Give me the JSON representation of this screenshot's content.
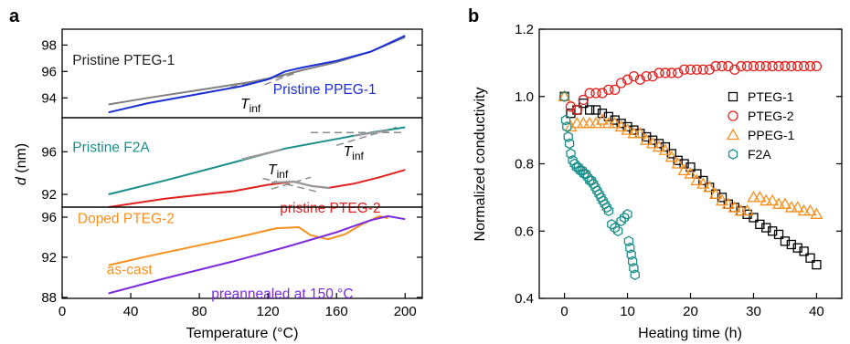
{
  "chart_data": [
    {
      "panel": "a",
      "type": "line",
      "xlabel": "Temperature (°C)",
      "ylabel_main": "d",
      "ylabel_unit": " (nm)",
      "xlim": [
        0,
        210
      ],
      "xticks": [
        "0",
        "40",
        "80",
        "120",
        "160",
        "200"
      ],
      "sub_panels": [
        {
          "ylim": [
            92.5,
            99.2
          ],
          "yticks": [
            {
              "v": 98,
              "label": "98"
            },
            {
              "v": 96,
              "label": "96"
            },
            {
              "v": 94,
              "label": "94"
            }
          ],
          "series": [
            {
              "color": "#808080",
              "points": [
                [
                  27,
                  93.5
                ],
                [
                  50,
                  94.0
                ],
                [
                  80,
                  94.6
                ],
                [
                  110,
                  95.2
                ],
                [
                  125,
                  95.6
                ],
                [
                  140,
                  96.1
                ],
                [
                  160,
                  96.7
                ],
                [
                  180,
                  97.5
                ],
                [
                  200,
                  98.6
                ]
              ]
            },
            {
              "color": "#1a2ed6",
              "points": [
                [
                  27,
                  92.9
                ],
                [
                  50,
                  93.6
                ],
                [
                  80,
                  94.3
                ],
                [
                  105,
                  94.9
                ],
                [
                  120,
                  95.4
                ],
                [
                  130,
                  96.0
                ],
                [
                  140,
                  96.3
                ],
                [
                  160,
                  96.8
                ],
                [
                  180,
                  97.5
                ],
                [
                  200,
                  98.7
                ]
              ]
            }
          ],
          "guides": [
            {
              "points": [
                [
                  98,
                  94.8
                ],
                [
                  135,
                  95.8
                ]
              ]
            },
            {
              "points": [
                [
                  118,
                  95.0
                ],
                [
                  142,
                  96.2
                ]
              ]
            }
          ],
          "labels": [
            {
              "text": "Pristine PTEG-1",
              "x": 6,
              "y": 96.5,
              "color": "#222222"
            },
            {
              "text": "Pristine PPEG-1",
              "x": 123,
              "y": 94.3,
              "color": "#1a2ed6"
            }
          ],
          "tinf": [
            {
              "x": 104,
              "y": 93.2
            }
          ]
        },
        {
          "ylim": [
            90.8,
            99.2
          ],
          "yticks": [
            {
              "v": 96,
              "label": "96"
            },
            {
              "v": 92,
              "label": "92"
            }
          ],
          "series": [
            {
              "color": "#1a8f8a",
              "points": [
                [
                  27,
                  92.0
                ],
                [
                  60,
                  93.3
                ],
                [
                  100,
                  95.0
                ],
                [
                  130,
                  96.3
                ],
                [
                  160,
                  97.2
                ],
                [
                  180,
                  97.8
                ],
                [
                  200,
                  98.3
                ]
              ]
            },
            {
              "color": "#e0211e",
              "points": [
                [
                  27,
                  90.8
                ],
                [
                  60,
                  91.6
                ],
                [
                  100,
                  92.3
                ],
                [
                  120,
                  92.9
                ],
                [
                  135,
                  93.2
                ],
                [
                  145,
                  92.8
                ],
                [
                  155,
                  92.6
                ],
                [
                  170,
                  93.0
                ],
                [
                  185,
                  93.6
                ],
                [
                  200,
                  94.3
                ]
              ]
            }
          ],
          "overlays": [
            {
              "color": "#999999",
              "points": [
                [
                  122,
                  93.1
                ],
                [
                  135,
                  93.2
                ],
                [
                  145,
                  92.8
                ],
                [
                  156,
                  92.6
                ]
              ]
            },
            {
              "color": "#999999",
              "points": [
                [
                  105,
                  95.3
                ],
                [
                  128,
                  96.2
                ]
              ]
            },
            {
              "color": "#999999",
              "points": [
                [
                  170,
                  97.5
                ],
                [
                  190,
                  98.0
                ]
              ]
            }
          ],
          "guides": [
            {
              "points": [
                [
                  145,
                  97.8
                ],
                [
                  200,
                  97.8
                ]
              ]
            },
            {
              "points": [
                [
                  160,
                  96.6
                ],
                [
                  195,
                  98.3
                ]
              ]
            },
            {
              "points": [
                [
                  122,
                  92.5
                ],
                [
                  145,
                  93.6
                ]
              ]
            },
            {
              "points": [
                [
                  117,
                  93.5
                ],
                [
                  150,
                  92.2
                ]
              ]
            }
          ],
          "labels": [
            {
              "text": "Pristine F2A",
              "x": 6,
              "y": 96.0,
              "color": "#1a8f8a"
            },
            {
              "text": "pristine PTEG-2",
              "x": 127,
              "y": 90.3,
              "color": "#e0211e"
            }
          ],
          "tinf": [
            {
              "x": 164,
              "y": 95.6
            },
            {
              "x": 120,
              "y": 93.9
            }
          ]
        },
        {
          "ylim": [
            87.9,
            97.0
          ],
          "yticks": [
            {
              "v": 96,
              "label": "96"
            },
            {
              "v": 92,
              "label": "92"
            },
            {
              "v": 88,
              "label": "88"
            }
          ],
          "series": [
            {
              "color": "#f7901e",
              "points": [
                [
                  27,
                  91.2
                ],
                [
                  50,
                  92.1
                ],
                [
                  80,
                  93.2
                ],
                [
                  105,
                  94.1
                ],
                [
                  125,
                  94.9
                ],
                [
                  138,
                  95.0
                ],
                [
                  145,
                  94.2
                ],
                [
                  155,
                  93.8
                ],
                [
                  165,
                  94.3
                ],
                [
                  175,
                  95.3
                ],
                [
                  185,
                  96.1
                ],
                [
                  190,
                  95.9
                ]
              ]
            },
            {
              "color": "#7b2ae0",
              "points": [
                [
                  27,
                  88.4
                ],
                [
                  60,
                  89.9
                ],
                [
                  100,
                  91.6
                ],
                [
                  130,
                  93.0
                ],
                [
                  160,
                  94.5
                ],
                [
                  180,
                  95.7
                ],
                [
                  190,
                  96.1
                ],
                [
                  200,
                  95.8
                ]
              ]
            }
          ],
          "labels": [
            {
              "text": "Doped PTEG-2",
              "x": 9,
              "y": 95.4,
              "color": "#f7901e"
            },
            {
              "text": "as-cast",
              "x": 26,
              "y": 90.3,
              "color": "#f7901e"
            },
            {
              "text": "preannealed at 150 °C",
              "x": 87,
              "y": 87.9,
              "color": "#7b2ae0"
            }
          ]
        }
      ],
      "tinf_label": {
        "main": "T",
        "sub": "inf"
      }
    },
    {
      "panel": "b",
      "type": "scatter",
      "xlabel": "Heating time (h)",
      "ylabel": "Normalized conductivity",
      "xlim": [
        -4,
        44
      ],
      "ylim": [
        0.4,
        1.2
      ],
      "xticks": [
        0,
        10,
        20,
        30,
        40
      ],
      "yticks": [
        {
          "v": 0.4,
          "label": "0.4"
        },
        {
          "v": 0.6,
          "label": "0.6"
        },
        {
          "v": 0.8,
          "label": "0.8"
        },
        {
          "v": 1.0,
          "label": "1.0"
        },
        {
          "v": 1.2,
          "label": "1.2"
        }
      ],
      "legend_position": "right",
      "series": [
        {
          "name": "PTEG-1",
          "marker": "square",
          "color": "#000000",
          "x": [
            0,
            1,
            2,
            3,
            4,
            5,
            6,
            7,
            8,
            9,
            10,
            11,
            12,
            13,
            14,
            15,
            16,
            17,
            18,
            19,
            20,
            21,
            22,
            23,
            24,
            25,
            26,
            27,
            28,
            29,
            30,
            31,
            32,
            33,
            34,
            35,
            36,
            37,
            38,
            39,
            40
          ],
          "y": [
            1.0,
            0.95,
            0.96,
            0.98,
            0.96,
            0.96,
            0.95,
            0.94,
            0.93,
            0.92,
            0.91,
            0.9,
            0.89,
            0.88,
            0.87,
            0.86,
            0.85,
            0.83,
            0.81,
            0.8,
            0.79,
            0.77,
            0.75,
            0.73,
            0.71,
            0.7,
            0.68,
            0.67,
            0.66,
            0.65,
            0.64,
            0.62,
            0.61,
            0.6,
            0.59,
            0.57,
            0.56,
            0.55,
            0.54,
            0.52,
            0.5
          ]
        },
        {
          "name": "PTEG-2",
          "marker": "circle",
          "color": "#e0211e",
          "x": [
            0,
            1,
            2,
            3,
            4,
            5,
            6,
            7,
            8,
            9,
            10,
            11,
            12,
            13,
            14,
            15,
            16,
            17,
            18,
            19,
            20,
            21,
            22,
            23,
            24,
            25,
            26,
            27,
            28,
            29,
            30,
            31,
            32,
            33,
            34,
            35,
            36,
            37,
            38,
            39,
            40
          ],
          "y": [
            1.0,
            0.97,
            0.96,
            0.99,
            1.01,
            1.01,
            1.01,
            1.02,
            1.02,
            1.04,
            1.05,
            1.06,
            1.05,
            1.06,
            1.06,
            1.07,
            1.07,
            1.07,
            1.07,
            1.08,
            1.08,
            1.08,
            1.08,
            1.08,
            1.09,
            1.09,
            1.09,
            1.08,
            1.09,
            1.09,
            1.09,
            1.09,
            1.09,
            1.09,
            1.09,
            1.09,
            1.09,
            1.09,
            1.09,
            1.09,
            1.09
          ]
        },
        {
          "name": "PPEG-1",
          "marker": "triangle",
          "color": "#f7901e",
          "x": [
            0,
            1,
            2,
            3,
            4,
            5,
            6,
            7,
            8,
            9,
            10,
            11,
            12,
            13,
            14,
            15,
            16,
            17,
            18,
            19,
            20,
            21,
            22,
            23,
            24,
            25,
            26,
            27,
            28,
            29,
            30,
            31,
            32,
            33,
            34,
            35,
            36,
            37,
            38,
            39,
            40
          ],
          "y": [
            1.0,
            0.91,
            0.92,
            0.92,
            0.92,
            0.92,
            0.93,
            0.92,
            0.92,
            0.91,
            0.9,
            0.89,
            0.89,
            0.87,
            0.86,
            0.85,
            0.84,
            0.82,
            0.8,
            0.78,
            0.77,
            0.75,
            0.74,
            0.73,
            0.71,
            0.69,
            0.68,
            0.67,
            0.66,
            0.66,
            0.7,
            0.7,
            0.69,
            0.69,
            0.68,
            0.68,
            0.67,
            0.67,
            0.66,
            0.66,
            0.65
          ]
        },
        {
          "name": "F2A",
          "marker": "hexagon",
          "color": "#1a8f8a",
          "x": [
            0,
            0.2,
            0.4,
            0.6,
            0.8,
            1,
            1.3,
            1.6,
            1.9,
            2.2,
            2.5,
            2.8,
            3.1,
            3.4,
            3.7,
            4,
            4.3,
            4.6,
            4.9,
            5.2,
            5.5,
            5.8,
            6.1,
            6.4,
            6.7,
            7,
            7.5,
            8,
            8.5,
            9,
            9.5,
            10,
            10.2,
            10.4,
            10.6,
            10.8,
            11,
            11.2
          ],
          "y": [
            1.0,
            0.93,
            0.91,
            0.88,
            0.86,
            0.83,
            0.81,
            0.8,
            0.79,
            0.79,
            0.78,
            0.78,
            0.77,
            0.77,
            0.76,
            0.75,
            0.75,
            0.74,
            0.73,
            0.72,
            0.71,
            0.7,
            0.69,
            0.68,
            0.67,
            0.66,
            0.62,
            0.61,
            0.6,
            0.63,
            0.64,
            0.65,
            0.57,
            0.55,
            0.53,
            0.51,
            0.49,
            0.47
          ]
        }
      ]
    }
  ]
}
